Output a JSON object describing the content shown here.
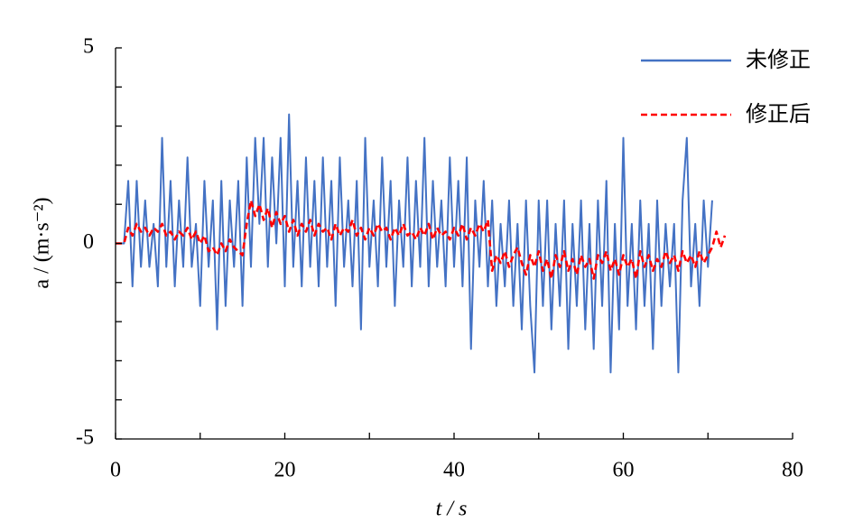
{
  "chart_data": {
    "type": "line",
    "xlabel": "t / s",
    "ylabel": "a / (m·s⁻²)",
    "xlim": [
      0,
      80
    ],
    "xticks": [
      0,
      20,
      40,
      60,
      80
    ],
    "xminorticks": [
      10,
      30,
      50,
      70
    ],
    "ylim": [
      -5,
      5
    ],
    "yticks": [
      -5,
      0,
      5
    ],
    "yminorticks": [
      -4,
      -3,
      -2,
      -1,
      1,
      2,
      3,
      4
    ],
    "legend": "upper right",
    "x": [
      0,
      0.5,
      1,
      1.5,
      2,
      2.5,
      3,
      3.5,
      4,
      4.5,
      5,
      5.5,
      6,
      6.5,
      7,
      7.5,
      8,
      8.5,
      9,
      9.5,
      10,
      10.5,
      11,
      11.5,
      12,
      12.5,
      13,
      13.5,
      14,
      14.5,
      15,
      15.5,
      16,
      16.5,
      17,
      17.5,
      18,
      18.5,
      19,
      19.5,
      20,
      20.5,
      21,
      21.5,
      22,
      22.5,
      23,
      23.5,
      24,
      24.5,
      25,
      25.5,
      26,
      26.5,
      27,
      27.5,
      28,
      28.5,
      29,
      29.5,
      30,
      30.5,
      31,
      31.5,
      32,
      32.5,
      33,
      33.5,
      34,
      34.5,
      35,
      35.5,
      36,
      36.5,
      37,
      37.5,
      38,
      38.5,
      39,
      39.5,
      40,
      40.5,
      41,
      41.5,
      42,
      42.5,
      43,
      43.5,
      44,
      44.5,
      45,
      45.5,
      46,
      46.5,
      47,
      47.5,
      48,
      48.5,
      49,
      49.5,
      50,
      50.5,
      51,
      51.5,
      52,
      52.5,
      53,
      53.5,
      54,
      54.5,
      55,
      55.5,
      56,
      56.5,
      57,
      57.5,
      58,
      58.5,
      59,
      59.5,
      60,
      60.5,
      61,
      61.5,
      62,
      62.5,
      63,
      63.5,
      64,
      64.5,
      65,
      65.5,
      66,
      66.5,
      67,
      67.5,
      68,
      68.5,
      69,
      69.5,
      70,
      70.5,
      71,
      71.5,
      72
    ],
    "series": [
      {
        "name": "未修正",
        "color": "#4472c4",
        "style": "solid",
        "values": [
          0,
          0,
          0,
          1.6,
          -1.1,
          1.6,
          -0.6,
          1.1,
          -0.6,
          0.5,
          -1.1,
          2.7,
          -0.6,
          1.6,
          -1.1,
          1.1,
          -0.6,
          2.2,
          -0.6,
          0.5,
          -1.6,
          1.6,
          -0.6,
          1.1,
          -2.2,
          1.6,
          -1.6,
          1.1,
          -0.6,
          1.6,
          -1.6,
          2.2,
          -0.6,
          2.7,
          0.5,
          2.7,
          -0.6,
          2.2,
          0,
          2.7,
          -1.1,
          3.3,
          -0.6,
          1.6,
          -1.1,
          2.2,
          -0.6,
          1.6,
          -1.1,
          2.2,
          -0.6,
          1.6,
          -1.6,
          2.2,
          -0.6,
          1.1,
          -1.1,
          1.6,
          -2.2,
          2.7,
          -0.6,
          1.1,
          -1.1,
          2.2,
          -0.6,
          1.6,
          -1.6,
          1.1,
          -0.6,
          2.2,
          -1.1,
          1.6,
          -0.6,
          2.7,
          -1.1,
          1.6,
          -0.6,
          1.1,
          -1.1,
          2.2,
          -0.6,
          1.6,
          -1.1,
          2.2,
          -2.7,
          1.1,
          -0.6,
          1.6,
          -1.1,
          1.1,
          -1.6,
          0.5,
          -1.1,
          1.1,
          -1.6,
          0.5,
          -2.2,
          1.1,
          -1.6,
          -3.3,
          1.1,
          -1.6,
          1.1,
          -2.2,
          0.5,
          -1.6,
          1.1,
          -2.7,
          0.5,
          -1.6,
          1.1,
          -2.2,
          0.5,
          -2.7,
          1.1,
          -1.6,
          1.6,
          -3.3,
          0.5,
          -2.2,
          2.7,
          -1.6,
          0.5,
          -2.2,
          1.1,
          -1.6,
          0.5,
          -2.7,
          1.1,
          -1.6,
          0.5,
          -1.1,
          0.5,
          -3.3,
          1.1,
          2.7,
          -1.1,
          0.5,
          -1.6,
          1.1,
          -0.6,
          1.1,
          null,
          null,
          null
        ]
      },
      {
        "name": "修正后",
        "color": "#ff0000",
        "style": "dashed",
        "values": [
          0,
          0,
          0,
          0.4,
          0.2,
          0.5,
          0.3,
          0.4,
          0.2,
          0.4,
          0.3,
          0.5,
          0.2,
          0.3,
          0.1,
          0.3,
          0.2,
          0.4,
          0.1,
          0.3,
          0,
          0.2,
          -0.2,
          -0.1,
          -0.3,
          0,
          -0.2,
          0.1,
          -0.1,
          -0.2,
          -0.3,
          0.5,
          1.1,
          0.7,
          1,
          0.6,
          0.9,
          0.4,
          0.8,
          0.5,
          0.7,
          0.3,
          0.6,
          0.2,
          0.5,
          0.3,
          0.6,
          0.2,
          0.5,
          0.3,
          0.4,
          0.1,
          0.5,
          0.2,
          0.4,
          0.3,
          0.6,
          0.2,
          0.4,
          0.1,
          0.4,
          0.2,
          0.5,
          0.3,
          0.4,
          0.1,
          0.4,
          0.2,
          0.5,
          0.2,
          0.3,
          0.1,
          0.4,
          0.2,
          0.5,
          0.1,
          0.4,
          0.2,
          0.3,
          0.1,
          0.4,
          0.2,
          0.5,
          0.1,
          0.4,
          0.2,
          0.5,
          0.3,
          0.6,
          -0.7,
          -0.3,
          -0.5,
          -0.2,
          -0.6,
          -0.3,
          -0.1,
          -0.5,
          -0.8,
          -0.3,
          -0.6,
          -0.2,
          -0.7,
          -0.4,
          -0.9,
          -0.3,
          -0.6,
          -0.2,
          -0.7,
          -0.4,
          -0.8,
          -0.3,
          -0.6,
          -0.4,
          -0.9,
          -0.3,
          -0.5,
          -0.2,
          -0.7,
          -0.4,
          -0.8,
          -0.3,
          -0.6,
          -0.4,
          -0.9,
          -0.2,
          -0.6,
          -0.3,
          -0.7,
          -0.4,
          -0.6,
          -0.2,
          -0.5,
          -0.3,
          -0.7,
          -0.2,
          -0.5,
          -0.3,
          -0.6,
          -0.2,
          -0.5,
          -0.3,
          -0.1,
          0.3,
          -0.1,
          0.2
        ]
      }
    ]
  }
}
